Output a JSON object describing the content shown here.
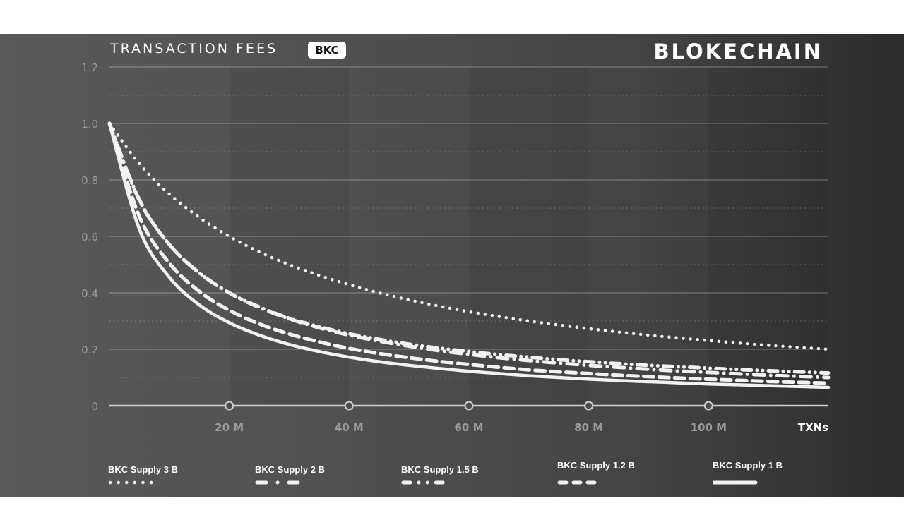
{
  "header": {
    "title": "TRANSACTION FEES",
    "badge": "BKC",
    "brand": "BLOKECHAIN"
  },
  "colors": {
    "background_left": "#595959",
    "background_right": "#2c2c2c",
    "line": "#f2f2f2",
    "axis": "#cfcfcf",
    "tick_label": "#9a9a9a",
    "highlight_label": "#ffffff"
  },
  "chart_data": {
    "type": "line",
    "title": "TRANSACTION FEES",
    "xlabel": "TXNs",
    "ylabel": "",
    "xlim": [
      0,
      120
    ],
    "ylim": [
      0,
      1.2
    ],
    "x_ticks": [
      20,
      40,
      60,
      80,
      100
    ],
    "x_tick_labels": [
      "20 M",
      "40 M",
      "60 M",
      "80 M",
      "100 M"
    ],
    "y_ticks": [
      0,
      0.2,
      0.4,
      0.6,
      0.8,
      1.0,
      1.2
    ],
    "y_tick_labels": [
      "0",
      "0.2",
      "0.4",
      "0.6",
      "0.8",
      "1.0",
      "1.2"
    ],
    "grid": true,
    "legend_position": "bottom",
    "x": [
      0,
      5,
      10,
      15,
      20,
      25,
      30,
      35,
      40,
      45,
      50,
      55,
      60,
      65,
      70,
      75,
      80,
      85,
      90,
      95,
      100,
      105,
      110,
      115,
      120
    ],
    "series": [
      {
        "name": "BKC Supply 3 B",
        "dash": "dotted",
        "values": [
          1.0,
          0.857,
          0.75,
          0.667,
          0.6,
          0.545,
          0.5,
          0.462,
          0.429,
          0.4,
          0.375,
          0.353,
          0.333,
          0.316,
          0.3,
          0.286,
          0.273,
          0.261,
          0.25,
          0.24,
          0.231,
          0.222,
          0.214,
          0.207,
          0.2
        ]
      },
      {
        "name": "BKC Supply 2 B",
        "dash": "dash-dot",
        "values": [
          1.0,
          0.727,
          0.571,
          0.471,
          0.4,
          0.348,
          0.308,
          0.276,
          0.25,
          0.229,
          0.211,
          0.195,
          0.182,
          0.17,
          0.16,
          0.151,
          0.143,
          0.136,
          0.129,
          0.123,
          0.118,
          0.113,
          0.108,
          0.104,
          0.1
        ]
      },
      {
        "name": "BKC Supply 1.5  B",
        "dash": "dash-dot-dot",
        "values": [
          1.0,
          0.73,
          0.571,
          0.47,
          0.4,
          0.35,
          0.31,
          0.28,
          0.255,
          0.235,
          0.218,
          0.204,
          0.192,
          0.181,
          0.172,
          0.163,
          0.156,
          0.149,
          0.143,
          0.138,
          0.133,
          0.128,
          0.124,
          0.12,
          0.116
        ]
      },
      {
        "name": "BKC Supply 1.2  B",
        "dash": "dashed",
        "values": [
          1.0,
          0.67,
          0.505,
          0.405,
          0.338,
          0.29,
          0.254,
          0.226,
          0.203,
          0.185,
          0.17,
          0.157,
          0.146,
          0.136,
          0.127,
          0.12,
          0.114,
          0.108,
          0.103,
          0.098,
          0.094,
          0.09,
          0.086,
          0.083,
          0.08
        ]
      },
      {
        "name": "BKC Supply 1  B",
        "dash": "solid",
        "values": [
          1.0,
          0.625,
          0.455,
          0.357,
          0.294,
          0.25,
          0.217,
          0.192,
          0.172,
          0.156,
          0.143,
          0.132,
          0.122,
          0.114,
          0.106,
          0.1,
          0.094,
          0.089,
          0.085,
          0.081,
          0.077,
          0.074,
          0.071,
          0.068,
          0.065
        ]
      }
    ]
  }
}
